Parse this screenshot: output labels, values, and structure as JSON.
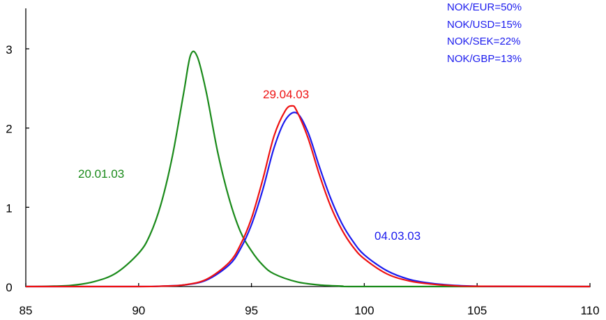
{
  "chart_data": {
    "type": "line",
    "title": "",
    "xlabel": "",
    "ylabel": "",
    "xlim": [
      85,
      110
    ],
    "ylim": [
      0,
      3.5
    ],
    "x_ticks": [
      85,
      90,
      95,
      100,
      105,
      110
    ],
    "y_ticks": [
      0,
      1,
      2,
      3
    ],
    "grid": false,
    "series": [
      {
        "name": "20.01.03",
        "color": "#1a8a1a",
        "x": [
          85,
          86,
          87,
          88,
          89,
          90,
          90.5,
          91,
          91.5,
          92,
          92.3,
          92.6,
          93,
          93.5,
          94,
          94.5,
          95,
          95.5,
          96,
          97,
          98,
          99,
          100,
          110
        ],
        "y": [
          0,
          0.004,
          0.015,
          0.06,
          0.17,
          0.42,
          0.65,
          1.05,
          1.65,
          2.45,
          2.92,
          2.9,
          2.45,
          1.7,
          1.12,
          0.7,
          0.45,
          0.27,
          0.16,
          0.06,
          0.02,
          0.006,
          0,
          0
        ]
      },
      {
        "name": "29.04.03",
        "color": "#ee1111",
        "x": [
          85,
          90,
          91,
          92,
          93,
          94,
          94.5,
          95,
          95.5,
          96,
          96.5,
          96.8,
          97,
          97.5,
          98,
          98.5,
          99,
          99.5,
          100,
          101,
          102,
          103,
          104,
          105,
          110
        ],
        "y": [
          0,
          0,
          0.005,
          0.02,
          0.09,
          0.3,
          0.52,
          0.86,
          1.35,
          1.9,
          2.22,
          2.28,
          2.22,
          1.88,
          1.42,
          1.02,
          0.72,
          0.5,
          0.35,
          0.16,
          0.07,
          0.03,
          0.01,
          0.003,
          0
        ]
      },
      {
        "name": "04.03.03",
        "color": "#1a1aee",
        "x": [
          85,
          90,
          91,
          92,
          93,
          94,
          94.5,
          95,
          95.5,
          96,
          96.5,
          97,
          97.5,
          98,
          98.5,
          99,
          99.5,
          100,
          101,
          102,
          103,
          104,
          105,
          106,
          110
        ],
        "y": [
          0,
          0,
          0.005,
          0.02,
          0.08,
          0.27,
          0.47,
          0.78,
          1.22,
          1.75,
          2.1,
          2.19,
          1.95,
          1.52,
          1.12,
          0.8,
          0.57,
          0.4,
          0.2,
          0.09,
          0.04,
          0.015,
          0.005,
          0.002,
          0
        ]
      }
    ],
    "annotations": [
      {
        "text": "20.01.03",
        "series": 0,
        "color": "#1a8a1a"
      },
      {
        "text": "29.04.03",
        "series": 1,
        "color": "#ee1111"
      },
      {
        "text": "04.03.03",
        "series": 2,
        "color": "#1a1aee"
      }
    ],
    "weights": {
      "color": "#1a1aee",
      "lines": [
        "NOK/EUR=50%",
        "NOK/USD=15%",
        "NOK/SEK=22%",
        "NOK/GBP=13%"
      ]
    }
  }
}
